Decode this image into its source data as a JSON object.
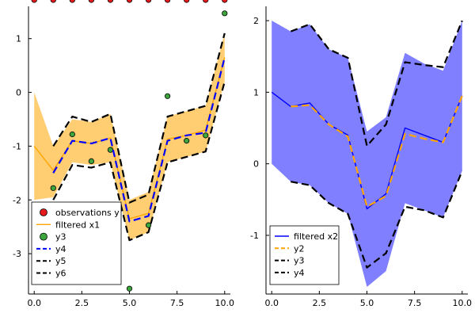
{
  "chart_data": [
    {
      "type": "line",
      "xlim": [
        -0.3,
        10.3
      ],
      "ylim": [
        -3.75,
        1.6
      ],
      "xticks": [
        0,
        2.5,
        5,
        7.5,
        10
      ],
      "xtick_labels": [
        "0.0",
        "2.5",
        "5.0",
        "7.5",
        "10.0"
      ],
      "yticks": [
        -3,
        -2,
        -1,
        0,
        1
      ],
      "ytick_labels": [
        "-3",
        "-2",
        "-1",
        "0",
        "1"
      ],
      "grid": false,
      "legend_position": "bottom-left",
      "x": [
        0,
        1,
        2,
        3,
        4,
        5,
        6,
        7,
        8,
        9,
        10
      ],
      "band": {
        "lower": [
          -2.0,
          -1.95,
          -1.3,
          -1.35,
          -1.3,
          -2.75,
          -2.6,
          -1.3,
          -1.2,
          -1.1,
          0.2
        ],
        "upper": [
          0.0,
          -1.0,
          -0.5,
          -0.55,
          -0.4,
          -2.0,
          -1.85,
          -0.45,
          -0.35,
          -0.25,
          1.1
        ],
        "color": "#ffa500"
      },
      "series": [
        {
          "name": "observations y",
          "kind": "marker",
          "color": "#e41a1c",
          "x": [],
          "y": []
        },
        {
          "name": "filtered x1",
          "kind": "line",
          "color": "#ffa500",
          "dash": "solid",
          "y": [
            -1.0,
            -1.45,
            -0.9,
            -0.95,
            -0.85,
            -2.35,
            -2.25,
            -0.87,
            -0.8,
            -0.7,
            0.65
          ]
        },
        {
          "name": "y3",
          "kind": "marker",
          "color": "#3ca53c",
          "x": [
            1,
            2,
            3,
            4,
            5,
            6,
            7,
            8,
            9,
            10
          ],
          "y": [
            -1.78,
            -0.78,
            -1.28,
            -1.07,
            -3.65,
            -2.47,
            -0.07,
            -0.9,
            -0.8,
            1.47
          ]
        },
        {
          "name": "y4",
          "kind": "line",
          "color": "#0000ff",
          "dash": "dash",
          "x": [
            1,
            2,
            3,
            4,
            5,
            6,
            7,
            8,
            9,
            10
          ],
          "y": [
            -1.5,
            -0.9,
            -0.95,
            -0.85,
            -2.4,
            -2.3,
            -0.9,
            -0.8,
            -0.75,
            0.65
          ]
        },
        {
          "name": "y5",
          "kind": "line",
          "color": "#000000",
          "dash": "dash",
          "x": [
            1,
            2,
            3,
            4,
            5,
            6,
            7,
            8,
            9,
            10
          ],
          "y": [
            -2.0,
            -1.35,
            -1.4,
            -1.3,
            -2.75,
            -2.6,
            -1.3,
            -1.2,
            -1.1,
            0.2
          ]
        },
        {
          "name": "y6",
          "kind": "line",
          "color": "#000000",
          "dash": "dash",
          "x": [
            1,
            2,
            3,
            4,
            5,
            6,
            7,
            8,
            9,
            10
          ],
          "y": [
            -1.0,
            -0.45,
            -0.55,
            -0.4,
            -2.05,
            -1.9,
            -0.45,
            -0.35,
            -0.25,
            1.1
          ]
        }
      ],
      "legend_entries": [
        "observations y",
        "filtered x1",
        "y3",
        "y4",
        "y5",
        "y6"
      ]
    },
    {
      "type": "line",
      "xlim": [
        -0.3,
        10.3
      ],
      "ylim": [
        -1.82,
        2.2
      ],
      "xticks": [
        0,
        2.5,
        5,
        7.5,
        10
      ],
      "xtick_labels": [
        "0.0",
        "2.5",
        "5.0",
        "7.5",
        "10.0"
      ],
      "yticks": [
        -1,
        0,
        1,
        2
      ],
      "ytick_labels": [
        "-1",
        "0",
        "1",
        "2"
      ],
      "grid": false,
      "legend_position": "bottom-left",
      "x": [
        0,
        1,
        2,
        3,
        4,
        5,
        6,
        7,
        8,
        9,
        10
      ],
      "band": {
        "lower": [
          0.0,
          -0.25,
          -0.3,
          -0.55,
          -0.7,
          -1.72,
          -1.5,
          -0.55,
          -0.65,
          -0.75,
          -0.1
        ],
        "upper": [
          2.0,
          1.85,
          1.95,
          1.6,
          1.48,
          0.45,
          0.65,
          1.55,
          1.4,
          1.3,
          2.0
        ],
        "color": "#0000ff"
      },
      "series": [
        {
          "name": "filtered x2",
          "kind": "line",
          "color": "#0000ff",
          "dash": "solid",
          "y": [
            1.0,
            0.8,
            0.85,
            0.55,
            0.4,
            -0.63,
            -0.42,
            0.5,
            0.4,
            0.3,
            0.95
          ]
        },
        {
          "name": "y2",
          "kind": "line",
          "color": "#ffa500",
          "dash": "dash",
          "x": [
            1,
            2,
            3,
            4,
            5,
            6,
            7,
            8,
            9,
            10
          ],
          "y": [
            0.8,
            0.82,
            0.55,
            0.38,
            -0.6,
            -0.45,
            0.42,
            0.35,
            0.3,
            0.95
          ]
        },
        {
          "name": "y3",
          "kind": "line",
          "color": "#000000",
          "dash": "dash",
          "x": [
            1,
            2,
            3,
            4,
            5,
            6,
            7,
            8,
            9,
            10
          ],
          "y": [
            1.85,
            1.95,
            1.6,
            1.48,
            0.25,
            0.55,
            1.42,
            1.38,
            1.35,
            2.0
          ]
        },
        {
          "name": "y4",
          "kind": "line",
          "color": "#000000",
          "dash": "dash",
          "x": [
            1,
            2,
            3,
            4,
            5,
            6,
            7,
            8,
            9,
            10
          ],
          "y": [
            -0.25,
            -0.3,
            -0.55,
            -0.7,
            -1.45,
            -1.25,
            -0.6,
            -0.65,
            -0.75,
            -0.1
          ]
        }
      ],
      "legend_entries": [
        "filtered x2",
        "y2",
        "y3",
        "y4"
      ]
    }
  ]
}
